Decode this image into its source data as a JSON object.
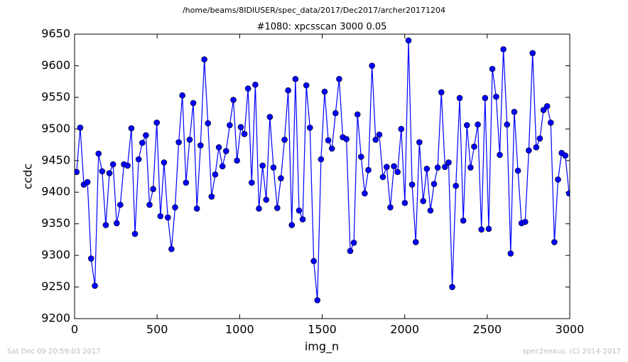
{
  "chart_data": {
    "type": "line",
    "suptitle": "/home/beams/8IDIUSER/spec_data/2017/Dec2017/archer20171204",
    "title": "#1080: xpcsscan 3000 0.05",
    "xlabel": "img_n",
    "ylabel": "ccdc",
    "footer_left": "Sat Dec 09 20:59:03 2017",
    "footer_right": "spec2nexus, (C) 2014-2017",
    "x": [
      12,
      34,
      56,
      78,
      100,
      123,
      145,
      167,
      189,
      211,
      233,
      255,
      277,
      299,
      321,
      344,
      366,
      388,
      410,
      432,
      454,
      476,
      498,
      520,
      542,
      565,
      587,
      609,
      631,
      653,
      675,
      697,
      719,
      741,
      763,
      786,
      808,
      830,
      852,
      874,
      896,
      918,
      940,
      962,
      984,
      1007,
      1029,
      1051,
      1073,
      1095,
      1117,
      1139,
      1161,
      1183,
      1205,
      1228,
      1250,
      1272,
      1294,
      1316,
      1338,
      1360,
      1382,
      1404,
      1426,
      1449,
      1471,
      1493,
      1515,
      1537,
      1559,
      1581,
      1603,
      1625,
      1647,
      1670,
      1692,
      1714,
      1736,
      1758,
      1780,
      1802,
      1824,
      1846,
      1868,
      1891,
      1913,
      1935,
      1957,
      1979,
      2001,
      2023,
      2045,
      2067,
      2089,
      2112,
      2134,
      2156,
      2178,
      2200,
      2222,
      2244,
      2266,
      2288,
      2310,
      2333,
      2355,
      2377,
      2399,
      2421,
      2443,
      2465,
      2487,
      2509,
      2531,
      2554,
      2576,
      2598,
      2620,
      2642,
      2664,
      2686,
      2708,
      2730,
      2752,
      2775,
      2797,
      2819,
      2841,
      2863,
      2885,
      2907,
      2929,
      2951,
      2973,
      2996
    ],
    "series": [
      {
        "name": "ccdc",
        "color": "#0000ff",
        "values": [
          9432,
          9502,
          9412,
          9416,
          9295,
          9252,
          9461,
          9433,
          9348,
          9430,
          9444,
          9351,
          9380,
          9444,
          9442,
          9501,
          9334,
          9452,
          9478,
          9490,
          9380,
          9405,
          9510,
          9362,
          9447,
          9360,
          9310,
          9376,
          9479,
          9553,
          9415,
          9483,
          9541,
          9374,
          9474,
          9610,
          9509,
          9393,
          9428,
          9471,
          9441,
          9465,
          9506,
          9546,
          9450,
          9503,
          9492,
          9564,
          9415,
          9570,
          9374,
          9442,
          9388,
          9519,
          9439,
          9375,
          9422,
          9483,
          9561,
          9348,
          9579,
          9371,
          9357,
          9569,
          9502,
          9291,
          9229,
          9452,
          9559,
          9482,
          9469,
          9525,
          9579,
          9487,
          9484,
          9307,
          9320,
          9523,
          9456,
          9398,
          9435,
          9600,
          9483,
          9491,
          9424,
          9440,
          9376,
          9441,
          9432,
          9500,
          9383,
          9640,
          9412,
          9321,
          9479,
          9386,
          9437,
          9371,
          9413,
          9439,
          9558,
          9440,
          9447,
          9250,
          9410,
          9549,
          9355,
          9506,
          9439,
          9472,
          9507,
          9341,
          9549,
          9342,
          9595,
          9551,
          9459,
          9626,
          9507,
          9303,
          9527,
          9434,
          9351,
          9353,
          9466,
          9620,
          9471,
          9485,
          9530,
          9536,
          9510,
          9321,
          9420,
          9462,
          9458,
          9398
        ]
      }
    ],
    "xlim": [
      0,
      3000
    ],
    "xticks": [
      0,
      500,
      1000,
      1500,
      2000,
      2500,
      3000
    ],
    "ylim": [
      9200,
      9650
    ],
    "yticks": [
      9200,
      9250,
      9300,
      9350,
      9400,
      9450,
      9500,
      9550,
      9600,
      9650
    ]
  }
}
